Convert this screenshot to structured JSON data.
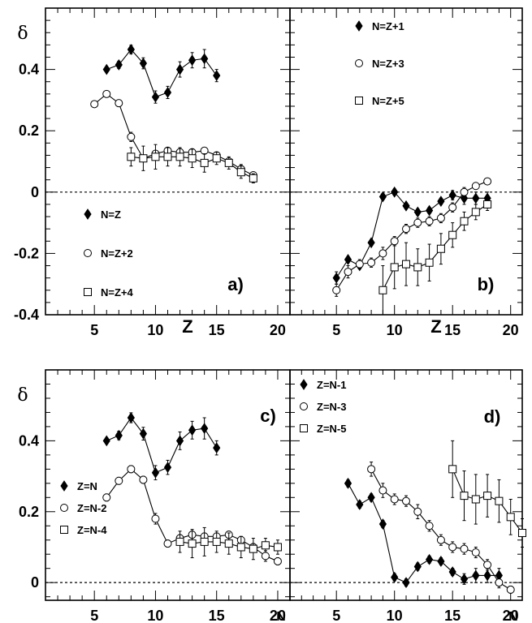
{
  "chart_data": [
    {
      "panel": "a)",
      "type": "scatter",
      "ylabel": "δ",
      "xlabel": "Z",
      "xlim": [
        1,
        21
      ],
      "ylim": [
        -0.4,
        0.6
      ],
      "x_ticks": [
        5,
        10,
        15,
        20
      ],
      "y_ticks": [
        -0.4,
        -0.2,
        0,
        0.2,
        0.4
      ],
      "y_tick_labels": [
        "-0.4",
        "-0.2",
        "0",
        "0.2",
        "0.4"
      ],
      "x_tick_labels": [
        "5",
        "10",
        "15",
        "20"
      ],
      "legend_position": "middle-left",
      "series": [
        {
          "name": "N=Z",
          "marker": "diamond",
          "x": [
            6,
            7,
            8,
            9,
            10,
            11,
            12,
            13,
            14,
            15
          ],
          "y": [
            0.4,
            0.415,
            0.465,
            0.42,
            0.31,
            0.325,
            0.4,
            0.43,
            0.435,
            0.38
          ],
          "err": [
            0.008,
            0.012,
            0.014,
            0.018,
            0.02,
            0.02,
            0.025,
            0.025,
            0.03,
            0.02
          ]
        },
        {
          "name": "N=Z+2",
          "marker": "circle",
          "x": [
            5,
            6,
            7,
            8,
            9,
            10,
            11,
            12,
            13,
            14,
            15,
            16,
            17,
            18
          ],
          "y": [
            0.287,
            0.32,
            0.29,
            0.18,
            0.11,
            0.125,
            0.135,
            0.13,
            0.13,
            0.135,
            0.12,
            0.1,
            0.075,
            0.055
          ],
          "err": [
            0.01,
            0.01,
            0.01,
            0.015,
            0.01,
            0.01,
            0.01,
            0.01,
            0.01,
            0.01,
            0.01,
            0.01,
            0.015,
            0.01
          ]
        },
        {
          "name": "N=Z+4",
          "marker": "square",
          "x": [
            8,
            9,
            10,
            11,
            12,
            13,
            14,
            15,
            16,
            17,
            18
          ],
          "y": [
            0.115,
            0.11,
            0.115,
            0.115,
            0.115,
            0.11,
            0.095,
            0.11,
            0.095,
            0.065,
            0.045
          ],
          "err": [
            0.03,
            0.04,
            0.04,
            0.03,
            0.03,
            0.03,
            0.03,
            0.02,
            0.02,
            0.02,
            0.015
          ]
        }
      ]
    },
    {
      "panel": "b)",
      "type": "scatter",
      "xlabel": "Z",
      "xlim": [
        1,
        21
      ],
      "ylim": [
        -0.4,
        0.6
      ],
      "x_ticks": [
        5,
        10,
        15,
        20
      ],
      "x_tick_labels": [
        "5",
        "10",
        "15",
        "20"
      ],
      "legend_position": "top-center",
      "series": [
        {
          "name": "N=Z+1",
          "marker": "diamond",
          "x": [
            5,
            6,
            7,
            8,
            9,
            10,
            11,
            12,
            13,
            14,
            15,
            16,
            17,
            18
          ],
          "y": [
            -0.28,
            -0.22,
            -0.24,
            -0.165,
            -0.015,
            0.0,
            -0.045,
            -0.065,
            -0.06,
            -0.03,
            -0.01,
            -0.02,
            -0.02,
            -0.02
          ],
          "err": [
            0.02,
            0.01,
            0.01,
            0.01,
            0.01,
            0.01,
            0.01,
            0.01,
            0.01,
            0.01,
            0.015,
            0.02,
            0.02,
            0.02
          ]
        },
        {
          "name": "N=Z+3",
          "marker": "circle",
          "x": [
            5,
            6,
            7,
            8,
            9,
            10,
            11,
            12,
            13,
            14,
            15,
            16,
            17,
            18
          ],
          "y": [
            -0.32,
            -0.26,
            -0.235,
            -0.23,
            -0.2,
            -0.16,
            -0.12,
            -0.1,
            -0.095,
            -0.085,
            -0.05,
            0.0,
            0.02,
            0.035
          ],
          "err": [
            0.02,
            0.02,
            0.015,
            0.015,
            0.02,
            0.015,
            0.015,
            0.015,
            0.015,
            0.015,
            0.015,
            0.015,
            0.01,
            0.01
          ]
        },
        {
          "name": "N=Z+5",
          "marker": "square",
          "x": [
            9,
            10,
            11,
            12,
            13,
            14,
            15,
            16,
            17,
            18
          ],
          "y": [
            -0.32,
            -0.245,
            -0.235,
            -0.245,
            -0.23,
            -0.185,
            -0.14,
            -0.095,
            -0.065,
            -0.04
          ],
          "err": [
            0.08,
            0.07,
            0.07,
            0.06,
            0.06,
            0.05,
            0.04,
            0.03,
            0.025,
            0.02
          ]
        }
      ]
    },
    {
      "panel": "c)",
      "type": "scatter",
      "ylabel": "δ",
      "xlim": [
        1,
        21
      ],
      "ylim": [
        -0.05,
        0.6
      ],
      "x_ticks": [
        5,
        10,
        15,
        20
      ],
      "x_tick_labels": [
        "5",
        "10",
        "15",
        "20"
      ],
      "y_ticks": [
        0,
        0.2,
        0.4
      ],
      "y_tick_labels": [
        "0",
        "0.2",
        "0.4"
      ],
      "legend_position": "left",
      "series": [
        {
          "name": "Z=N",
          "marker": "diamond",
          "x": [
            6,
            7,
            8,
            9,
            10,
            11,
            12,
            13,
            14,
            15
          ],
          "y": [
            0.4,
            0.415,
            0.465,
            0.42,
            0.31,
            0.325,
            0.4,
            0.43,
            0.435,
            0.38
          ],
          "err": [
            0.008,
            0.012,
            0.014,
            0.018,
            0.02,
            0.02,
            0.025,
            0.025,
            0.03,
            0.02
          ]
        },
        {
          "name": "Z=N-2",
          "marker": "circle",
          "x": [
            6,
            7,
            8,
            9,
            10,
            11,
            12,
            13,
            14,
            15,
            16,
            17,
            18,
            19,
            20
          ],
          "y": [
            0.24,
            0.287,
            0.32,
            0.29,
            0.18,
            0.11,
            0.125,
            0.135,
            0.13,
            0.13,
            0.135,
            0.12,
            0.1,
            0.075,
            0.06
          ],
          "err": [
            0.01,
            0.01,
            0.01,
            0.01,
            0.015,
            0.01,
            0.01,
            0.01,
            0.01,
            0.01,
            0.01,
            0.01,
            0.01,
            0.015,
            0.01
          ]
        },
        {
          "name": "Z=N-4",
          "marker": "square",
          "x": [
            12,
            13,
            14,
            15,
            16,
            17,
            18,
            19,
            20
          ],
          "y": [
            0.115,
            0.11,
            0.115,
            0.115,
            0.11,
            0.1,
            0.095,
            0.105,
            0.1
          ],
          "err": [
            0.03,
            0.04,
            0.04,
            0.03,
            0.03,
            0.03,
            0.03,
            0.02,
            0.02
          ]
        }
      ]
    },
    {
      "panel": "d)",
      "type": "scatter",
      "xlim": [
        1,
        21
      ],
      "ylim": [
        -0.05,
        0.6
      ],
      "x_ticks": [
        5,
        10,
        15,
        20
      ],
      "x_tick_labels": [
        "5",
        "10",
        "15",
        "20"
      ],
      "legend_position": "top-left",
      "series": [
        {
          "name": "Z=N-1",
          "marker": "diamond",
          "x": [
            6,
            7,
            8,
            9,
            10,
            11,
            12,
            13,
            14,
            15,
            16,
            17,
            18,
            19
          ],
          "y": [
            0.28,
            0.22,
            0.24,
            0.165,
            0.015,
            0.0,
            0.045,
            0.065,
            0.06,
            0.03,
            0.01,
            0.02,
            0.02,
            0.02
          ],
          "err": [
            0.01,
            0.01,
            0.01,
            0.01,
            0.01,
            0.01,
            0.01,
            0.01,
            0.01,
            0.01,
            0.015,
            0.02,
            0.02,
            0.02
          ]
        },
        {
          "name": "Z=N-3",
          "marker": "circle",
          "x": [
            8,
            9,
            10,
            11,
            12,
            13,
            14,
            15,
            16,
            17,
            18,
            19,
            20
          ],
          "y": [
            0.32,
            0.26,
            0.235,
            0.23,
            0.2,
            0.16,
            0.12,
            0.1,
            0.095,
            0.085,
            0.05,
            0.0,
            -0.02
          ],
          "err": [
            0.02,
            0.02,
            0.015,
            0.015,
            0.02,
            0.015,
            0.015,
            0.015,
            0.015,
            0.015,
            0.015,
            0.015,
            0.01
          ]
        },
        {
          "name": "Z=N-5",
          "marker": "square",
          "x": [
            15,
            16,
            17,
            18,
            19,
            20,
            21
          ],
          "y": [
            0.32,
            0.245,
            0.235,
            0.245,
            0.23,
            0.185,
            0.14
          ],
          "err": [
            0.08,
            0.07,
            0.07,
            0.06,
            0.06,
            0.05,
            0.04
          ]
        }
      ]
    }
  ]
}
